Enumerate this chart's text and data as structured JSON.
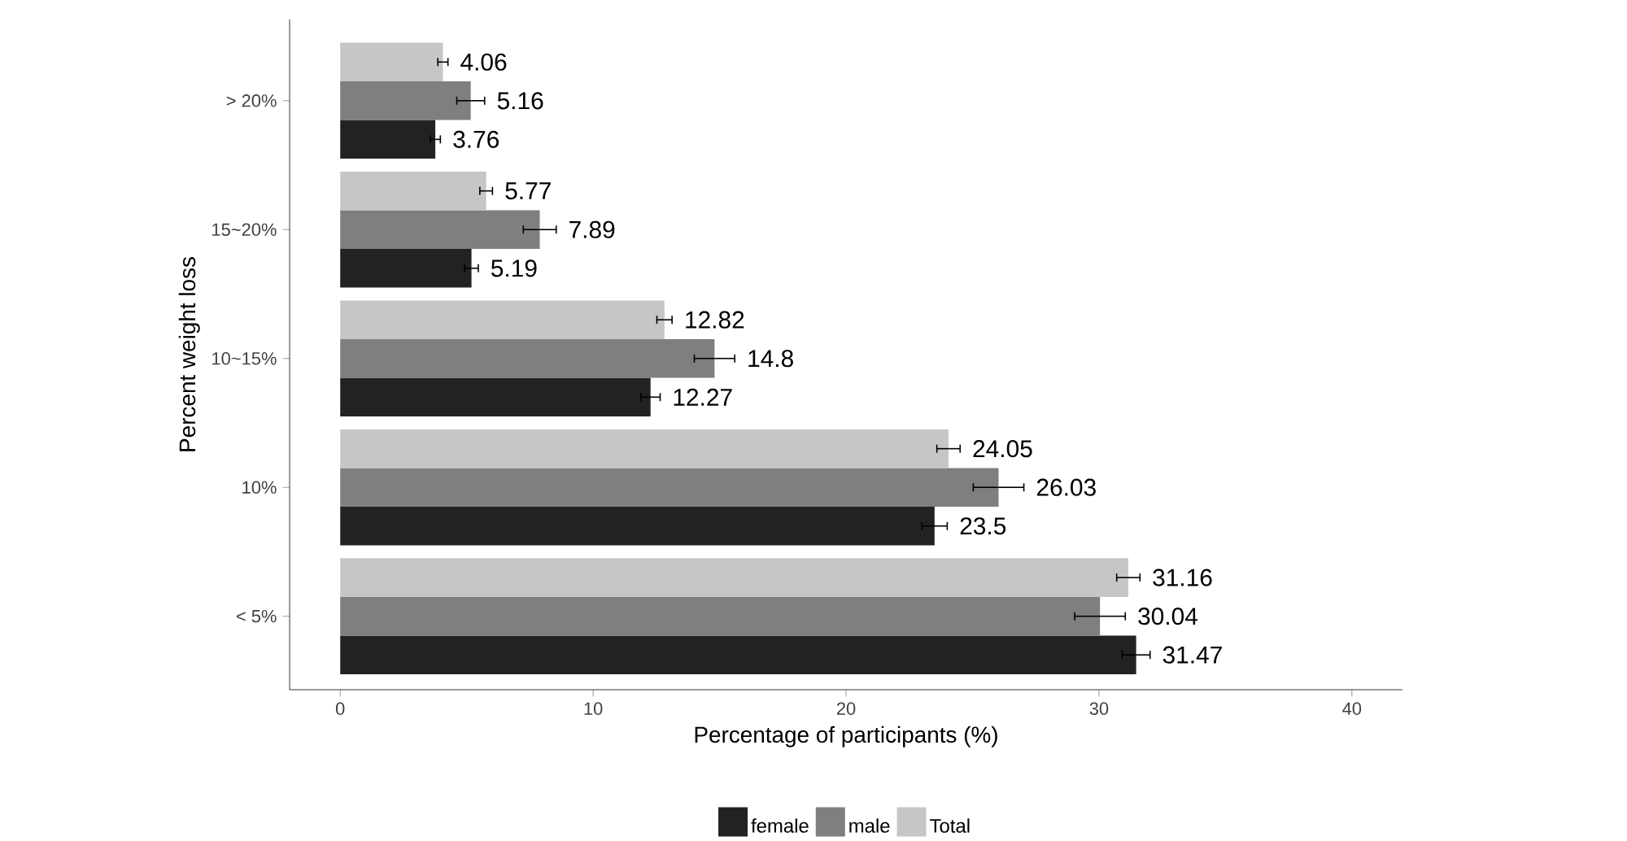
{
  "chart_data": {
    "type": "bar",
    "orientation": "horizontal",
    "xlabel": "Percentage of participants (%)",
    "ylabel": "Percent weight loss",
    "categories": [
      "> 20%",
      "15~20%",
      "10~15%",
      "10%",
      "< 5%"
    ],
    "series": [
      {
        "name": "female",
        "color": "#222222",
        "values": [
          3.76,
          5.19,
          12.27,
          23.5,
          31.47
        ],
        "errors": [
          0.2,
          0.27,
          0.38,
          0.5,
          0.55
        ],
        "value_labels": [
          "3.76",
          "5.19",
          "12.27",
          "23.5",
          "31.47"
        ]
      },
      {
        "name": "male",
        "color": "#7f7f7f",
        "values": [
          5.16,
          7.89,
          14.8,
          26.03,
          30.04
        ],
        "errors": [
          0.55,
          0.65,
          0.8,
          1.0,
          1.0
        ],
        "value_labels": [
          "5.16",
          "7.89",
          "14.8",
          "26.03",
          "30.04"
        ]
      },
      {
        "name": "Total",
        "color": "#c6c6c6",
        "values": [
          4.06,
          5.77,
          12.82,
          24.05,
          31.16
        ],
        "errors": [
          0.2,
          0.25,
          0.3,
          0.46,
          0.46
        ],
        "value_labels": [
          "4.06",
          "5.77",
          "12.82",
          "24.05",
          "31.16"
        ]
      }
    ],
    "xlim": [
      -2,
      42
    ],
    "xticks": [
      0,
      10,
      20,
      30,
      40
    ],
    "grid": false,
    "legend": "bottom"
  }
}
